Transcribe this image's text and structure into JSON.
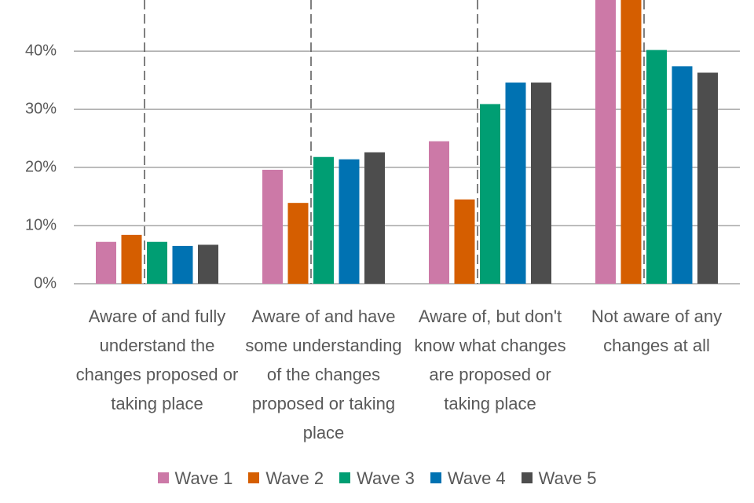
{
  "chart_data": {
    "type": "bar",
    "categories": [
      "Aware of and fully understand the changes proposed or taking place",
      "Aware of and have some understanding of the changes proposed or taking place",
      "Aware of, but don't know what changes are proposed or taking place",
      "Not aware of any changes at all"
    ],
    "series": [
      {
        "name": "Wave 1",
        "color": "#cc79a7",
        "values": [
          7.2,
          19.6,
          24.5,
          50
        ]
      },
      {
        "name": "Wave 2",
        "color": "#d55e00",
        "values": [
          8.4,
          13.9,
          14.5,
          50
        ]
      },
      {
        "name": "Wave 3",
        "color": "#009e73",
        "values": [
          7.2,
          21.8,
          30.9,
          40.2
        ]
      },
      {
        "name": "Wave 4",
        "color": "#0072b2",
        "values": [
          6.5,
          21.4,
          34.6,
          37.4
        ]
      },
      {
        "name": "Wave 5",
        "color": "#4d4d4d",
        "values": [
          6.7,
          22.6,
          34.6,
          36.3
        ]
      }
    ],
    "ylim": [
      0,
      48.8
    ],
    "yticks": [
      {
        "value": 0,
        "label": "0%"
      },
      {
        "value": 10,
        "label": "10%"
      },
      {
        "value": 20,
        "label": "20%"
      },
      {
        "value": 30,
        "label": "30%"
      },
      {
        "value": 40,
        "label": "40%"
      }
    ],
    "grid": true,
    "legend": "bottom"
  }
}
